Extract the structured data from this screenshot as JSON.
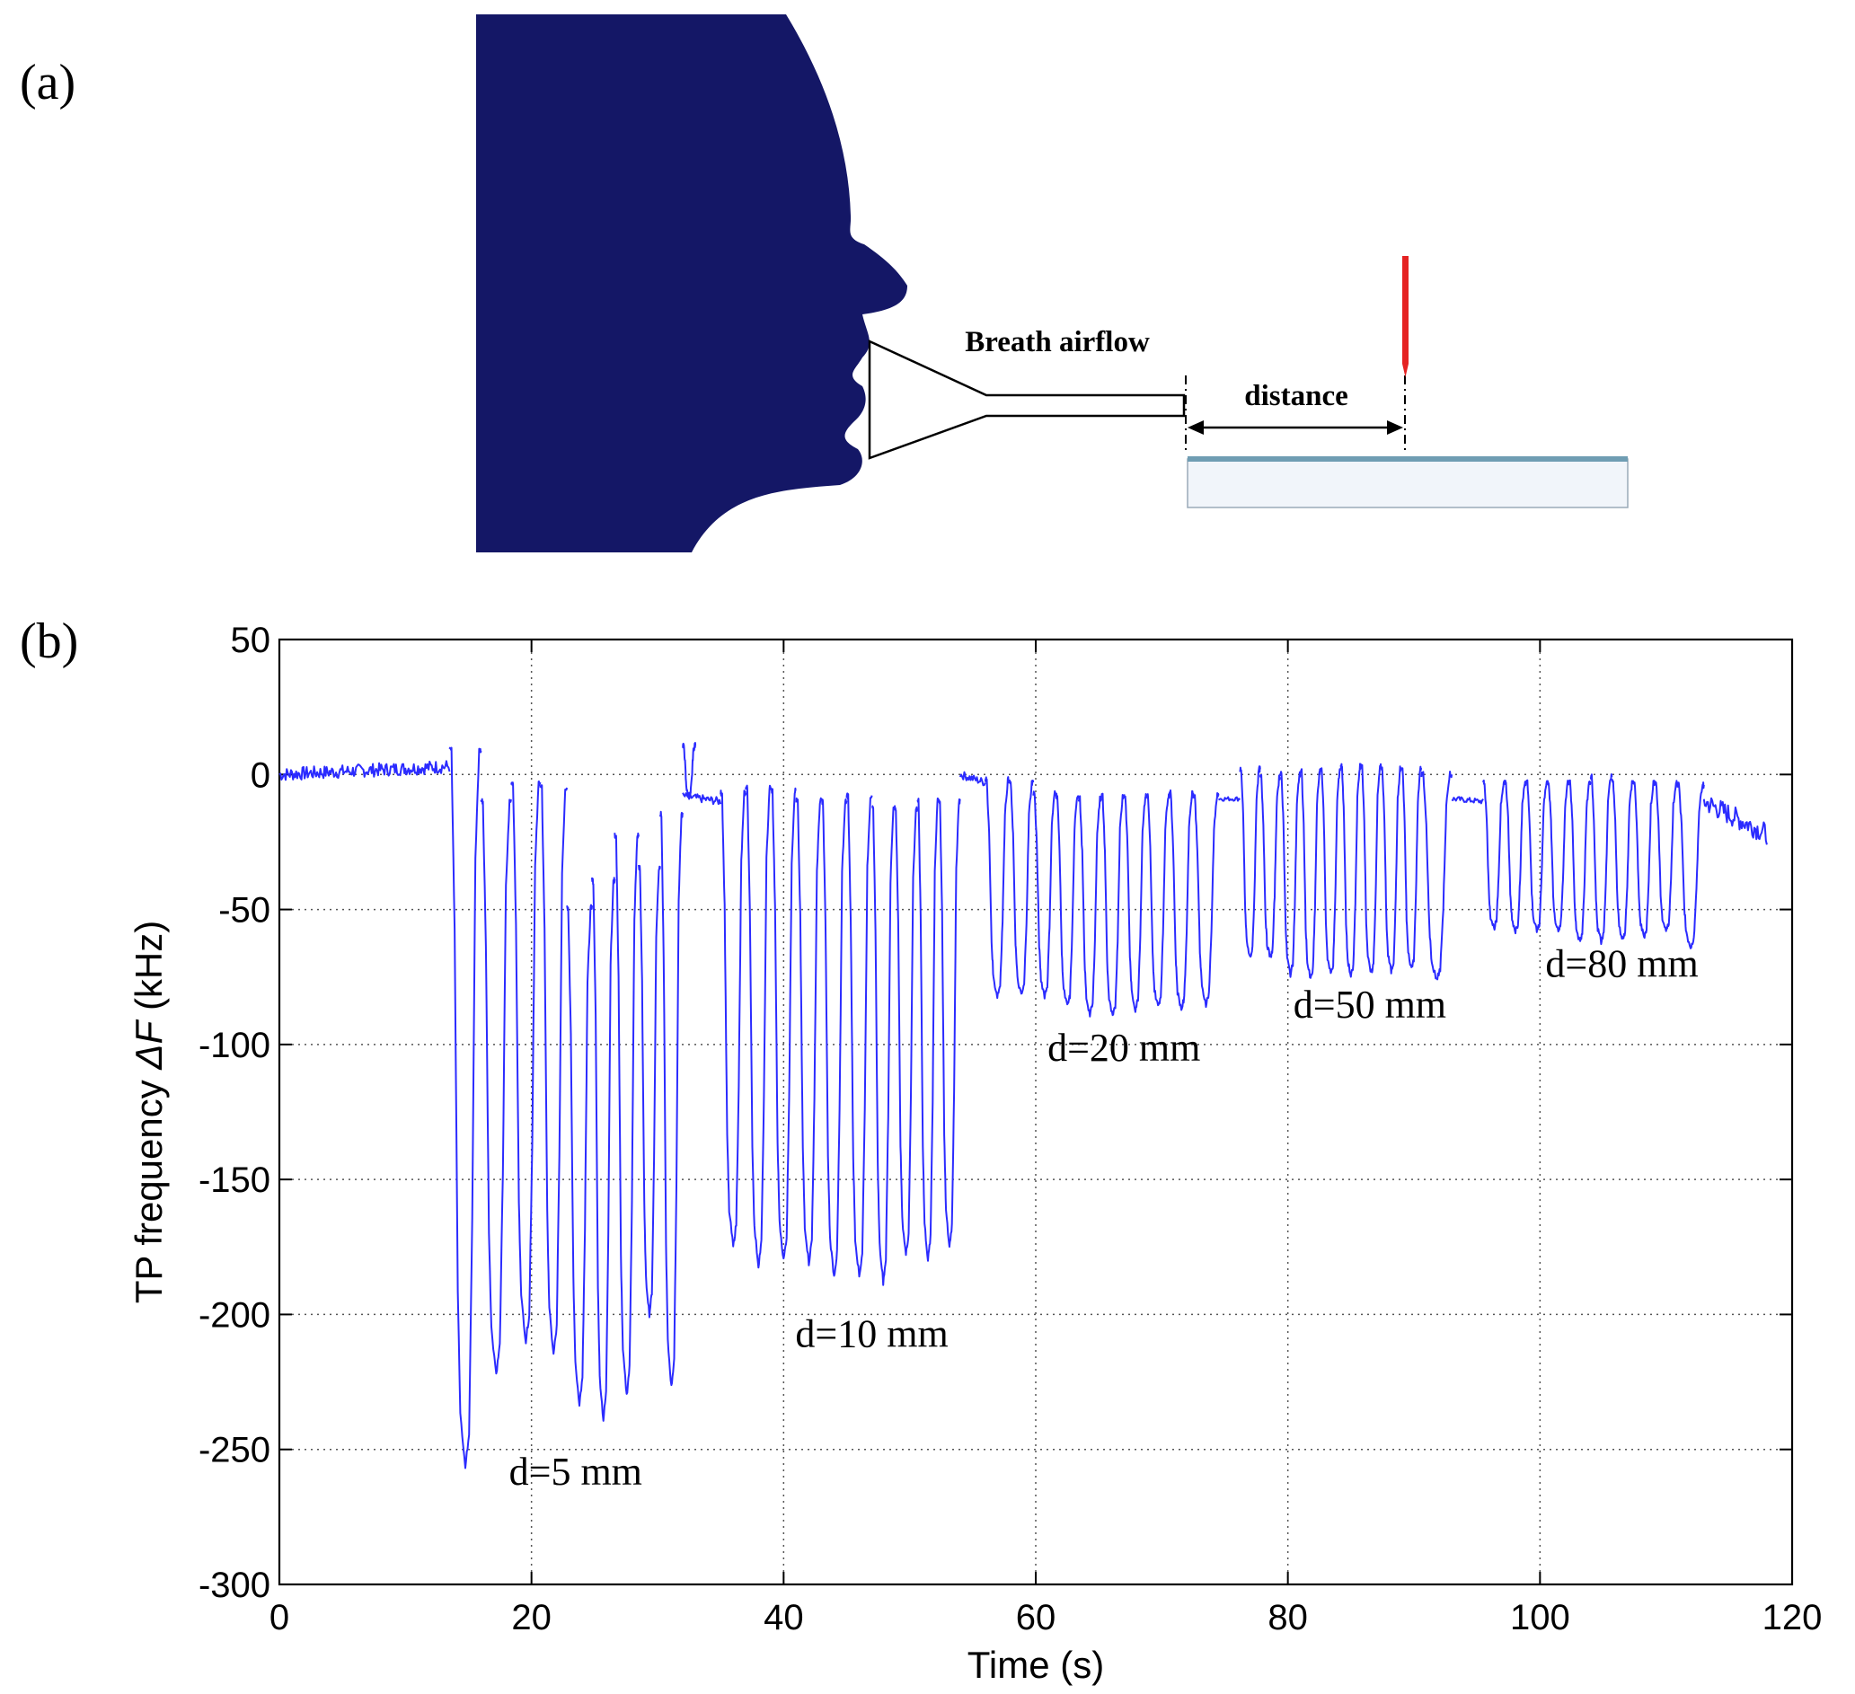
{
  "panel_a": {
    "label": "(a)",
    "airflow_label": "Breath airflow",
    "distance_label": "distance",
    "colors": {
      "head": "#141766",
      "needle": "#e52222",
      "plate_top": "#6f9db3",
      "plate_body": "#f1f5fa"
    }
  },
  "panel_b": {
    "label": "(b)"
  },
  "chart_data": {
    "type": "line",
    "title": "",
    "xlabel": "Time (s)",
    "ylabel_prefix": "TP frequency",
    "ylabel_symbol": "ΔF",
    "ylabel_unit": "(kHz)",
    "xlim": [
      0,
      120
    ],
    "ylim": [
      -300,
      50
    ],
    "x_ticks": [
      0,
      20,
      40,
      60,
      80,
      100,
      120
    ],
    "y_ticks": [
      50,
      0,
      -50,
      -100,
      -150,
      -200,
      -250,
      -300
    ],
    "grid": true,
    "line_color": "#2b2bff",
    "annotations": [
      {
        "text": "d=5 mm",
        "x": 23.5,
        "y": -263
      },
      {
        "text": "d=10 mm",
        "x": 47,
        "y": -212
      },
      {
        "text": "d=20 mm",
        "x": 67,
        "y": -106
      },
      {
        "text": "d=50 mm",
        "x": 86.5,
        "y": -90
      },
      {
        "text": "d=80 mm",
        "x": 106.5,
        "y": -75
      }
    ],
    "baseline_segments": [
      {
        "x": [
          0,
          13.5
        ],
        "y": [
          0,
          3
        ],
        "noise": 2.5
      },
      {
        "x": [
          32,
          35
        ],
        "y": [
          -8,
          -10
        ],
        "noise": 1.5
      },
      {
        "x": [
          54,
          56
        ],
        "y": [
          0,
          -3
        ],
        "noise": 1.5
      },
      {
        "x": [
          74.5,
          76.2
        ],
        "y": [
          -9,
          -9
        ],
        "noise": 0.8
      },
      {
        "x": [
          93,
          95.5
        ],
        "y": [
          -9,
          -10
        ],
        "noise": 1.0
      },
      {
        "x": [
          113,
          118
        ],
        "y": [
          -10,
          -22
        ],
        "noise": 4.0
      }
    ],
    "series": [
      {
        "group": "d=5 mm",
        "cycles": [
          {
            "t_start": 13.5,
            "t_end": 16.0,
            "peak": 9,
            "trough": -257
          },
          {
            "t_start": 16.0,
            "t_end": 18.4,
            "peak": -10,
            "trough": -222
          },
          {
            "t_start": 18.4,
            "t_end": 20.7,
            "peak": -3,
            "trough": -210
          },
          {
            "t_start": 20.7,
            "t_end": 22.8,
            "peak": -5,
            "trough": -215
          },
          {
            "t_start": 22.8,
            "t_end": 24.8,
            "peak": -50,
            "trough": -233
          },
          {
            "t_start": 24.8,
            "t_end": 26.6,
            "peak": -40,
            "trough": -239
          },
          {
            "t_start": 26.6,
            "t_end": 28.5,
            "peak": -23,
            "trough": -230
          },
          {
            "t_start": 28.5,
            "t_end": 30.2,
            "peak": -35,
            "trough": -200
          },
          {
            "t_start": 30.2,
            "t_end": 32.0,
            "peak": -15,
            "trough": -227
          },
          {
            "t_start": 32.0,
            "t_end": 33.0,
            "peak": 11,
            "trough": -8
          }
        ]
      },
      {
        "group": "d=10 mm",
        "cycles": [
          {
            "t_start": 35.0,
            "t_end": 37.0,
            "peak": -7,
            "trough": -175
          },
          {
            "t_start": 37.0,
            "t_end": 39.0,
            "peak": -5,
            "trough": -182
          },
          {
            "t_start": 39.0,
            "t_end": 41.0,
            "peak": -6,
            "trough": -180
          },
          {
            "t_start": 41.0,
            "t_end": 43.0,
            "peak": -10,
            "trough": -181
          },
          {
            "t_start": 43.0,
            "t_end": 45.0,
            "peak": -10,
            "trough": -186
          },
          {
            "t_start": 45.0,
            "t_end": 47.0,
            "peak": -8,
            "trough": -186
          },
          {
            "t_start": 47.0,
            "t_end": 48.8,
            "peak": -13,
            "trough": -188
          },
          {
            "t_start": 48.8,
            "t_end": 50.6,
            "peak": -13,
            "trough": -178
          },
          {
            "t_start": 50.6,
            "t_end": 52.3,
            "peak": -10,
            "trough": -180
          },
          {
            "t_start": 52.3,
            "t_end": 54.0,
            "peak": -10,
            "trough": -175
          }
        ]
      },
      {
        "group": "d=20 mm",
        "cycles": [
          {
            "t_start": 56.0,
            "t_end": 57.9,
            "peak": -2,
            "trough": -82
          },
          {
            "t_start": 57.9,
            "t_end": 59.8,
            "peak": -3,
            "trough": -82
          },
          {
            "t_start": 59.8,
            "t_end": 61.6,
            "peak": -7,
            "trough": -82
          },
          {
            "t_start": 61.6,
            "t_end": 63.4,
            "peak": -8,
            "trough": -86
          },
          {
            "t_start": 63.4,
            "t_end": 65.2,
            "peak": -9,
            "trough": -89
          },
          {
            "t_start": 65.2,
            "t_end": 67.0,
            "peak": -8,
            "trough": -90
          },
          {
            "t_start": 67.0,
            "t_end": 68.8,
            "peak": -8,
            "trough": -87
          },
          {
            "t_start": 68.8,
            "t_end": 70.6,
            "peak": -8,
            "trough": -86
          },
          {
            "t_start": 70.6,
            "t_end": 72.5,
            "peak": -7,
            "trough": -87
          },
          {
            "t_start": 72.5,
            "t_end": 74.5,
            "peak": -8,
            "trough": -85
          }
        ]
      },
      {
        "group": "d=50 mm",
        "cycles": [
          {
            "t_start": 76.2,
            "t_end": 77.8,
            "peak": 2,
            "trough": -68
          },
          {
            "t_start": 77.8,
            "t_end": 79.4,
            "peak": -1,
            "trough": -68
          },
          {
            "t_start": 79.4,
            "t_end": 81.0,
            "peak": 0,
            "trough": -74
          },
          {
            "t_start": 81.0,
            "t_end": 82.6,
            "peak": 1,
            "trough": -76
          },
          {
            "t_start": 82.6,
            "t_end": 84.2,
            "peak": 2,
            "trough": -74
          },
          {
            "t_start": 84.2,
            "t_end": 85.8,
            "peak": 3,
            "trough": -75
          },
          {
            "t_start": 85.8,
            "t_end": 87.4,
            "peak": 3,
            "trough": -74
          },
          {
            "t_start": 87.4,
            "t_end": 89.0,
            "peak": 2,
            "trough": -73
          },
          {
            "t_start": 89.0,
            "t_end": 90.6,
            "peak": 2,
            "trough": -72
          },
          {
            "t_start": 90.6,
            "t_end": 93.0,
            "peak": 0,
            "trough": -76
          }
        ]
      },
      {
        "group": "d=80 mm",
        "cycles": [
          {
            "t_start": 95.5,
            "t_end": 97.2,
            "peak": -3,
            "trough": -57
          },
          {
            "t_start": 97.2,
            "t_end": 98.9,
            "peak": -3,
            "trough": -58
          },
          {
            "t_start": 98.9,
            "t_end": 100.6,
            "peak": -3,
            "trough": -58
          },
          {
            "t_start": 100.6,
            "t_end": 102.3,
            "peak": -3,
            "trough": -58
          },
          {
            "t_start": 102.3,
            "t_end": 104.0,
            "peak": -3,
            "trough": -62
          },
          {
            "t_start": 104.0,
            "t_end": 105.7,
            "peak": -1,
            "trough": -62
          },
          {
            "t_start": 105.7,
            "t_end": 107.4,
            "peak": -3,
            "trough": -61
          },
          {
            "t_start": 107.4,
            "t_end": 109.1,
            "peak": -3,
            "trough": -60
          },
          {
            "t_start": 109.1,
            "t_end": 110.9,
            "peak": -3,
            "trough": -58
          },
          {
            "t_start": 110.9,
            "t_end": 113.0,
            "peak": -4,
            "trough": -64
          }
        ]
      }
    ]
  }
}
